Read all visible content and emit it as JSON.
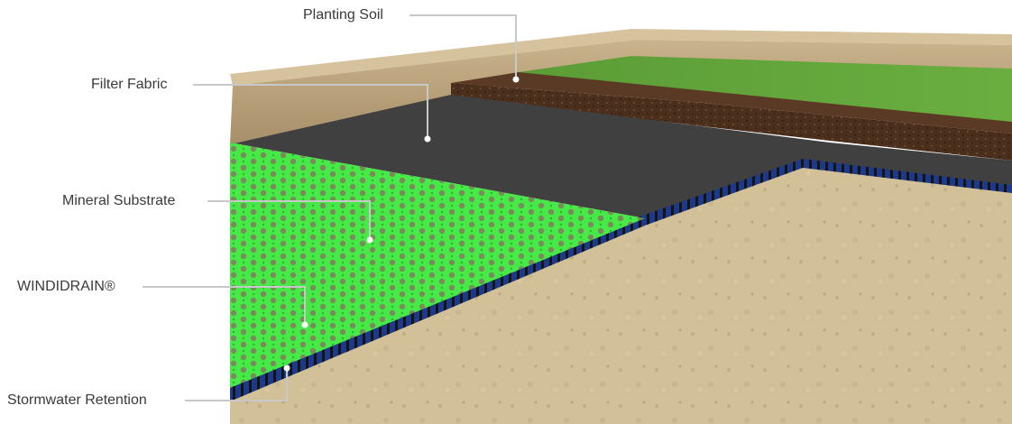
{
  "labels": {
    "planting_soil": "Planting Soil",
    "filter_fabric": "Filter Fabric",
    "mineral_substrate": "Mineral Substrate",
    "windidrain": "WINDIDRAIN®",
    "stormwater_retention": "Stormwater Retention"
  },
  "colors": {
    "wall": "#b79f79",
    "grass": "#62a33a",
    "soil": "#4a2e1c",
    "fabric": "#3f3f3f",
    "drain": "#3fe83f",
    "retention": "#1e3c8c",
    "concrete": "#d2c199",
    "leader": "#c8c8c8"
  }
}
